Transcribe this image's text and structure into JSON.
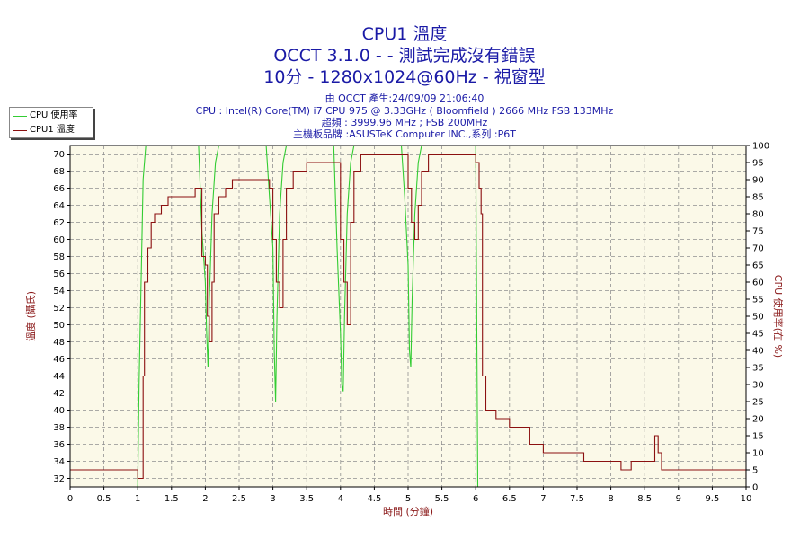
{
  "titles": {
    "line1": "CPU1 溫度",
    "line2": "OCCT 3.1.0 -  - 測試完成沒有錯誤",
    "line3": "10分 - 1280x1024@60Hz - 視窗型"
  },
  "info": {
    "line1": "由 OCCT 產生:24/09/09 21:06:40",
    "line2": "CPU : Intel(R) Core(TM) i7 CPU 975 @ 3.33GHz ( Bloomfield ) 2666 MHz FSB 133MHz",
    "line3": "超頻 : 3999.96 MHz ; FSB 200MHz",
    "line4": "主機板品牌 :ASUSTeK Computer INC.,系列 :P6T"
  },
  "colors": {
    "title": "#1a1aa6",
    "axis_label": "#8b1a1a",
    "plot_bg": "#fbf9e8",
    "grid": "#909090",
    "cpu_usage": "#33cc33",
    "cpu_temp": "#8b1010"
  },
  "chart_data": {
    "type": "line",
    "title": "CPU1 溫度",
    "xlabel": "時間 (分鐘)",
    "ylabel": "溫度 (攝氏)",
    "y2label": "CPU 使用率(在 %)",
    "xlim": [
      0,
      10
    ],
    "ylim": [
      31,
      71
    ],
    "y2lim": [
      0,
      100
    ],
    "x_ticks": [
      "0",
      "0.5",
      "1",
      "1.5",
      "2",
      "2.5",
      "3",
      "3.5",
      "4",
      "4.5",
      "5",
      "5.5",
      "6",
      "6.5",
      "7",
      "7.5",
      "8",
      "8.5",
      "9",
      "9.5",
      "10"
    ],
    "y_ticks": [
      "32",
      "34",
      "36",
      "38",
      "40",
      "42",
      "44",
      "46",
      "48",
      "50",
      "52",
      "54",
      "56",
      "58",
      "60",
      "62",
      "64",
      "66",
      "68",
      "70"
    ],
    "y2_ticks": [
      "0",
      "5",
      "10",
      "15",
      "20",
      "25",
      "30",
      "35",
      "40",
      "45",
      "50",
      "55",
      "60",
      "65",
      "70",
      "75",
      "80",
      "85",
      "90",
      "95",
      "100"
    ],
    "grid": true,
    "legend_position": "top-left, outside plot",
    "series": [
      {
        "name": "CPU 使用率",
        "axis": "right",
        "x": [
          0,
          1.0,
          1.02,
          1.08,
          1.12,
          1.2,
          1.9,
          1.95,
          2.0,
          2.02,
          2.04,
          2.06,
          2.1,
          2.15,
          2.2,
          2.9,
          2.95,
          3.0,
          3.02,
          3.04,
          3.06,
          3.1,
          3.15,
          3.2,
          3.9,
          3.95,
          4.0,
          4.02,
          4.04,
          4.06,
          4.1,
          4.15,
          4.2,
          4.9,
          4.95,
          5.0,
          5.02,
          5.04,
          5.06,
          5.1,
          5.15,
          5.2,
          6.0,
          6.03,
          6.1,
          10.0
        ],
        "y": [
          0,
          0,
          30,
          90,
          100,
          100,
          100,
          75,
          60,
          45,
          35,
          55,
          80,
          95,
          100,
          100,
          85,
          70,
          40,
          25,
          50,
          80,
          95,
          100,
          100,
          70,
          45,
          30,
          28,
          50,
          80,
          95,
          100,
          100,
          85,
          65,
          40,
          35,
          55,
          80,
          95,
          100,
          100,
          0,
          0,
          0
        ]
      },
      {
        "name": "CPU1 溫度",
        "axis": "left",
        "x": [
          0,
          0.8,
          0.85,
          1.0,
          1.05,
          1.08,
          1.1,
          1.15,
          1.2,
          1.25,
          1.35,
          1.45,
          1.55,
          1.65,
          1.75,
          1.85,
          1.95,
          2.0,
          2.03,
          2.06,
          2.1,
          2.13,
          2.2,
          2.3,
          2.4,
          2.5,
          2.7,
          2.95,
          3.0,
          3.05,
          3.1,
          3.15,
          3.2,
          3.3,
          3.5,
          3.7,
          3.8,
          3.95,
          4.0,
          4.05,
          4.1,
          4.15,
          4.2,
          4.3,
          4.6,
          4.95,
          5.0,
          5.05,
          5.1,
          5.15,
          5.2,
          5.3,
          5.6,
          5.9,
          6.0,
          6.05,
          6.08,
          6.1,
          6.15,
          6.3,
          6.5,
          6.8,
          7.0,
          7.3,
          7.6,
          8.0,
          8.15,
          8.25,
          8.3,
          8.6,
          8.65,
          8.7,
          8.75,
          9.0,
          9.5,
          9.95,
          10.0
        ],
        "y": [
          33,
          33,
          33,
          32,
          32,
          44,
          55,
          59,
          62,
          63,
          64,
          65,
          65,
          65,
          65,
          66,
          58,
          57,
          51,
          48,
          55,
          63,
          65,
          66,
          67,
          67,
          67,
          66,
          60,
          55,
          52,
          60,
          66,
          68,
          69,
          69,
          69,
          69,
          60,
          55,
          50,
          62,
          68,
          70,
          70,
          70,
          66,
          62,
          60,
          64,
          68,
          70,
          70,
          70,
          69,
          66,
          63,
          44,
          40,
          39,
          38,
          36,
          35,
          35,
          34,
          34,
          33,
          33,
          34,
          34,
          37,
          35,
          33,
          33,
          33,
          33,
          32
        ]
      }
    ]
  }
}
